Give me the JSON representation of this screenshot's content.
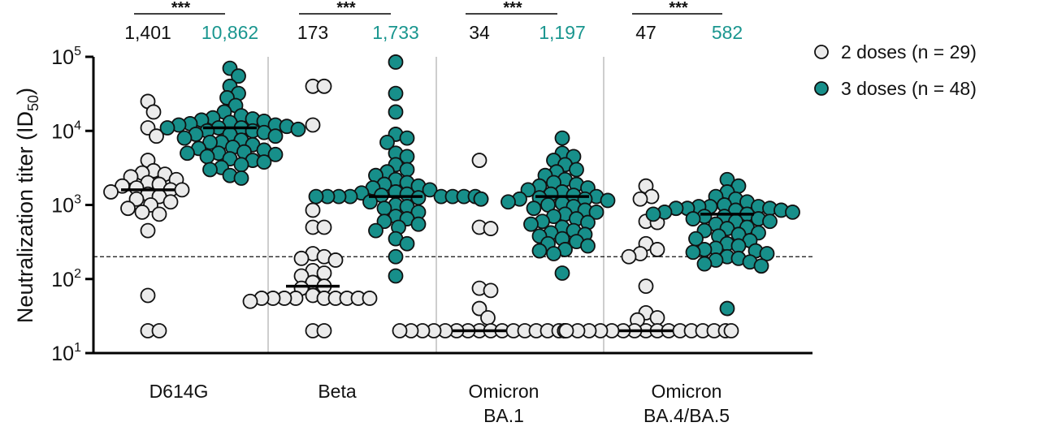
{
  "chart_data": {
    "type": "scatter",
    "subtype": "dot-plot",
    "y_scale": "log",
    "ylim": [
      10,
      100000
    ],
    "ylabel": {
      "prefix": "Neutralization titer (ID",
      "sub": "50",
      "suffix": ")"
    },
    "yticks": [
      {
        "value": 100000,
        "base": "10",
        "exp": "5"
      },
      {
        "value": 10000,
        "base": "10",
        "exp": "4"
      },
      {
        "value": 1000,
        "base": "10",
        "exp": "3"
      },
      {
        "value": 100,
        "base": "10",
        "exp": "2"
      },
      {
        "value": 10,
        "base": "10",
        "exp": "1"
      }
    ],
    "threshold_line": 200,
    "grid": false,
    "legend_placement": "right",
    "colors": {
      "two_doses": "#ebebeb",
      "three_doses": "#178f8a",
      "label_teal": "#1a968f",
      "divider": "#bdbdbd"
    },
    "legend": [
      {
        "label": "2 doses (n = 29)",
        "series": "two_doses"
      },
      {
        "label": "3 doses (n = 48)",
        "series": "three_doses"
      }
    ],
    "groups": [
      {
        "label": [
          "D614G"
        ],
        "significance": "***",
        "gmt_labels": [
          "1,401",
          "10,862"
        ],
        "two_doses": {
          "center_line": 1600,
          "values": [
            25000,
            18000,
            11000,
            8500,
            4000,
            2900,
            2700,
            2600,
            2400,
            2200,
            2000,
            1900,
            1800,
            1700,
            1600,
            1600,
            1500,
            1400,
            1300,
            1200,
            1100,
            1000,
            900,
            800,
            750,
            450,
            60,
            20,
            20
          ]
        },
        "three_doses": {
          "center_line": 11000,
          "values": [
            70000,
            55000,
            40000,
            32000,
            28000,
            22000,
            18000,
            16000,
            15000,
            14000,
            13000,
            12500,
            12000,
            11500,
            11000,
            11000,
            10500,
            10000,
            10000,
            9500,
            9000,
            8500,
            8000,
            7500,
            7000,
            6500,
            6000,
            5800,
            5500,
            5000,
            5000,
            4800,
            4500,
            4200,
            4000,
            3800,
            3500,
            3200,
            3000,
            2500,
            14500,
            13500,
            12000,
            11000,
            9000,
            7000,
            5200,
            2300
          ]
        }
      },
      {
        "label": [
          "Beta"
        ],
        "significance": "***",
        "gmt_labels": [
          "173",
          "1,733"
        ],
        "two_doses": {
          "center_line": 80,
          "values": [
            40000,
            40000,
            12000,
            850,
            500,
            500,
            220,
            200,
            190,
            180,
            130,
            120,
            110,
            90,
            80,
            75,
            55,
            55,
            55,
            55,
            55,
            55,
            55,
            55,
            55,
            50,
            20,
            20,
            60
          ]
        },
        "three_doses": {
          "center_line": 1300,
          "values": [
            85000,
            32000,
            18000,
            9000,
            8000,
            7000,
            5000,
            4500,
            3500,
            3000,
            2800,
            2500,
            2200,
            2000,
            1900,
            1800,
            1700,
            1600,
            1500,
            1400,
            1300,
            1300,
            1300,
            1300,
            1300,
            1300,
            1300,
            1300,
            1200,
            1200,
            1100,
            1000,
            950,
            900,
            800,
            700,
            650,
            600,
            550,
            500,
            450,
            350,
            300,
            200,
            110,
            1250,
            1350,
            1450
          ]
        }
      },
      {
        "label": [
          "Omicron",
          "BA.1"
        ],
        "significance": "***",
        "gmt_labels": [
          "34",
          "1,197"
        ],
        "two_doses": {
          "center_line": 20,
          "values": [
            4000,
            500,
            480,
            75,
            70,
            40,
            30,
            20,
            20,
            20,
            20,
            20,
            20,
            20,
            20,
            20,
            20,
            20,
            20,
            20,
            20,
            20,
            20,
            20,
            20,
            20,
            20,
            20,
            20
          ]
        },
        "three_doses": {
          "center_line": 1300,
          "values": [
            8000,
            5000,
            4500,
            4000,
            3500,
            3000,
            2800,
            2500,
            2200,
            2000,
            1900,
            1800,
            1700,
            1600,
            1500,
            1400,
            1300,
            1250,
            1200,
            1200,
            1150,
            1100,
            1050,
            1000,
            950,
            900,
            850,
            800,
            750,
            700,
            650,
            600,
            580,
            550,
            500,
            450,
            420,
            400,
            380,
            350,
            320,
            300,
            280,
            250,
            240,
            220,
            120,
            1350
          ]
        }
      },
      {
        "label": [
          "Omicron",
          "BA.4/BA.5"
        ],
        "significance": "***",
        "gmt_labels": [
          "47",
          "582"
        ],
        "two_doses": {
          "center_line": 20,
          "values": [
            1800,
            1300,
            1200,
            600,
            580,
            300,
            250,
            220,
            200,
            80,
            35,
            30,
            28,
            20,
            20,
            20,
            20,
            20,
            20,
            20,
            20,
            20,
            20,
            20,
            20,
            20,
            20,
            20,
            20
          ]
        },
        "three_doses": {
          "center_line": 750,
          "values": [
            2200,
            1800,
            1500,
            1300,
            1200,
            1000,
            950,
            950,
            950,
            900,
            900,
            900,
            850,
            850,
            800,
            800,
            750,
            750,
            700,
            700,
            650,
            650,
            600,
            600,
            550,
            500,
            480,
            450,
            420,
            400,
            380,
            350,
            330,
            300,
            280,
            260,
            250,
            240,
            230,
            220,
            200,
            190,
            180,
            170,
            160,
            150,
            40,
            1100
          ]
        }
      }
    ]
  }
}
